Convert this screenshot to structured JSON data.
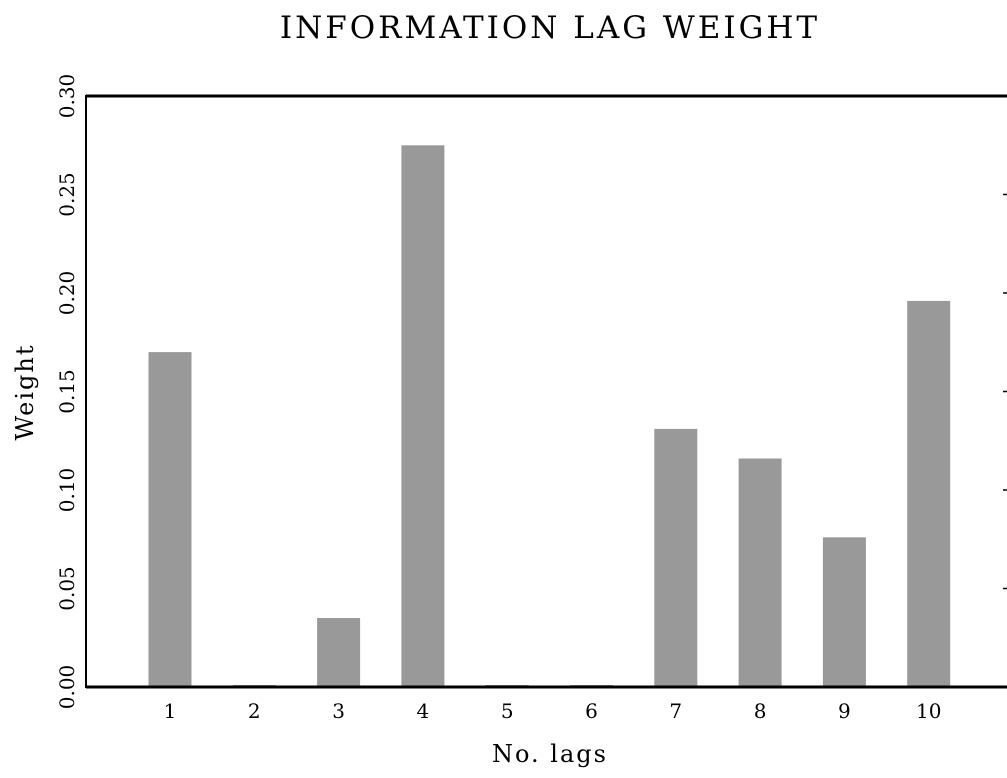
{
  "chart_data": {
    "type": "bar",
    "title": "INFORMATION LAG WEIGHT",
    "xlabel": "No. lags",
    "ylabel": "Weight",
    "categories": [
      "1",
      "2",
      "3",
      "4",
      "5",
      "6",
      "7",
      "8",
      "9",
      "10"
    ],
    "values": [
      0.17,
      0.001,
      0.035,
      0.275,
      0.001,
      0.001,
      0.131,
      0.116,
      0.076,
      0.196
    ],
    "ylim": [
      0,
      0.3
    ],
    "yticks": [
      "0.00",
      "0.05",
      "0.10",
      "0.15",
      "0.20",
      "0.25",
      "0.30"
    ],
    "grid": false,
    "legend": "none",
    "bar_color": "#999999",
    "axis_color": "#000000"
  }
}
